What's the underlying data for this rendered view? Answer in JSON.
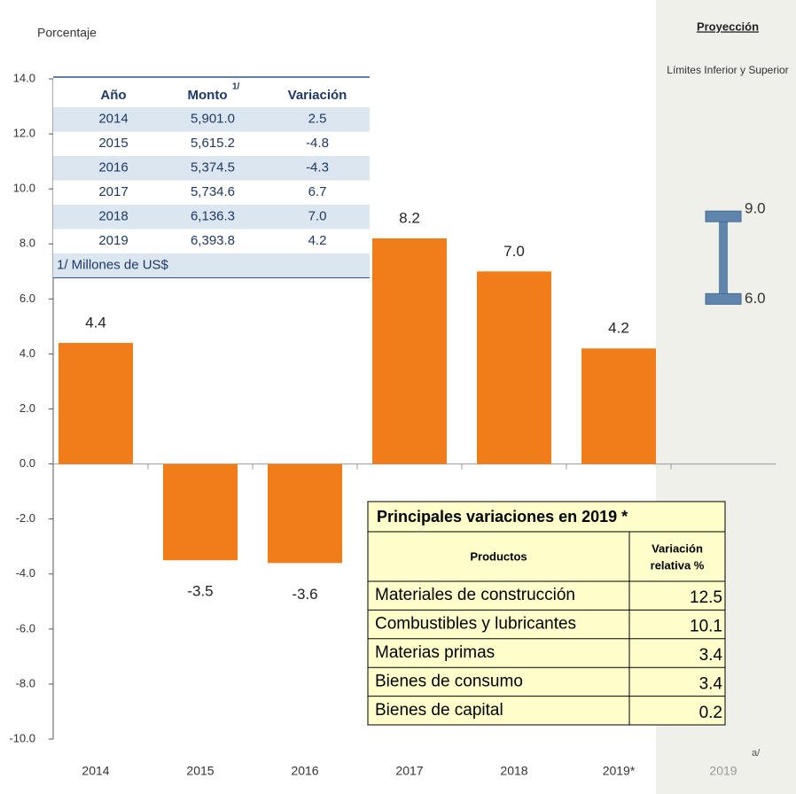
{
  "chart_data": {
    "type": "bar",
    "ylabel": "Porcentaje",
    "categories": [
      "2014",
      "2015",
      "2016",
      "2017",
      "2018",
      "2019*"
    ],
    "values": [
      4.4,
      -3.5,
      -3.6,
      8.2,
      7.0,
      4.2
    ],
    "value_labels": [
      "4.4",
      "-3.5",
      "-3.6",
      "8.2",
      "7.0",
      "4.2"
    ],
    "color": "#f07c1a",
    "ylim": [
      -10,
      14
    ],
    "yticks": [
      {
        "value": -10,
        "label": "-10.0"
      },
      {
        "value": -8,
        "label": "-8.0"
      },
      {
        "value": -6,
        "label": "-6.0"
      },
      {
        "value": -4,
        "label": "-4.0"
      },
      {
        "value": -2,
        "label": "-2.0"
      },
      {
        "value": 0,
        "label": "0.0"
      },
      {
        "value": 2,
        "label": "2.0"
      },
      {
        "value": 4,
        "label": "4.0"
      },
      {
        "value": 6,
        "label": "6.0"
      },
      {
        "value": 8,
        "label": "8.0"
      },
      {
        "value": 10,
        "label": "10.0"
      },
      {
        "value": 12,
        "label": "12.0"
      },
      {
        "value": 14,
        "label": "14.0"
      }
    ],
    "grid": false,
    "projection": {
      "title": "Proyección",
      "subtitle": "Límites Inferior y Superior",
      "category": "2019",
      "note": "a/",
      "lower": 6.0,
      "upper": 9.0,
      "lower_label": "6.0",
      "upper_label": "9.0",
      "color": "#5f85ad"
    }
  },
  "tables": {
    "summary": {
      "headers": [
        "Año",
        "Monto",
        "Variación"
      ],
      "header_note": "1/",
      "rows": [
        [
          "2014",
          "5,901.0",
          "2.5"
        ],
        [
          "2015",
          "5,615.2",
          "-4.8"
        ],
        [
          "2016",
          "5,374.5",
          "-4.3"
        ],
        [
          "2017",
          "5,734.6",
          "6.7"
        ],
        [
          "2018",
          "6,136.3",
          "7.0"
        ],
        [
          "2019",
          "6,393.8",
          "4.2"
        ]
      ],
      "footnote": "1/ Millones de US$"
    },
    "products": {
      "title": "Principales variaciones en 2019 *",
      "headers": [
        "Productos",
        "Variación",
        "relativa %"
      ],
      "rows": [
        [
          "Materiales de construcción",
          "12.5"
        ],
        [
          "Combustibles y lubricantes",
          "10.1"
        ],
        [
          "Materias primas",
          "3.4"
        ],
        [
          "Bienes de consumo",
          "3.4"
        ],
        [
          "Bienes de capital",
          "0.2"
        ]
      ]
    }
  }
}
